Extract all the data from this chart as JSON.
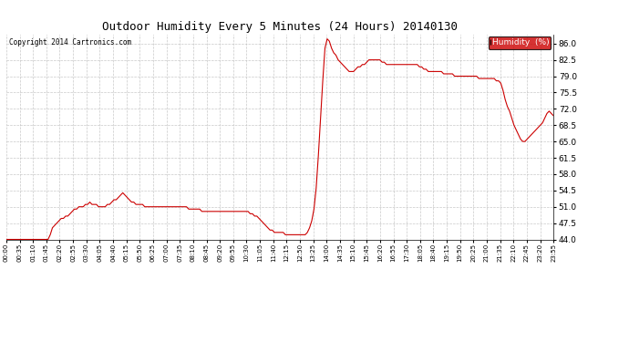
{
  "title": "Outdoor Humidity Every 5 Minutes (24 Hours) 20140130",
  "copyright": "Copyright 2014 Cartronics.com",
  "legend_label": "Humidity  (%)",
  "line_color": "#cc0000",
  "background_color": "#ffffff",
  "grid_color": "#bbbbbb",
  "ylim": [
    44.0,
    88.0
  ],
  "yticks": [
    44.0,
    47.5,
    51.0,
    54.5,
    58.0,
    61.5,
    65.0,
    68.5,
    72.0,
    75.5,
    79.0,
    82.5,
    86.0
  ],
  "humidity_data": [
    44.0,
    44.0,
    44.0,
    44.0,
    44.0,
    44.0,
    44.0,
    44.0,
    44.0,
    44.0,
    44.0,
    44.0,
    44.0,
    44.0,
    44.0,
    44.0,
    44.0,
    44.0,
    44.0,
    44.0,
    45.0,
    46.5,
    47.0,
    47.5,
    48.0,
    48.5,
    48.5,
    49.0,
    49.0,
    49.5,
    50.0,
    50.5,
    50.5,
    51.0,
    51.0,
    51.0,
    51.5,
    51.5,
    52.0,
    51.5,
    51.5,
    51.5,
    51.0,
    51.0,
    51.0,
    51.0,
    51.5,
    51.5,
    52.0,
    52.5,
    52.5,
    53.0,
    53.5,
    54.0,
    53.5,
    53.0,
    52.5,
    52.0,
    52.0,
    51.5,
    51.5,
    51.5,
    51.5,
    51.0,
    51.0,
    51.0,
    51.0,
    51.0,
    51.0,
    51.0,
    51.0,
    51.0,
    51.0,
    51.0,
    51.0,
    51.0,
    51.0,
    51.0,
    51.0,
    51.0,
    51.0,
    51.0,
    51.0,
    50.5,
    50.5,
    50.5,
    50.5,
    50.5,
    50.5,
    50.0,
    50.0,
    50.0,
    50.0,
    50.0,
    50.0,
    50.0,
    50.0,
    50.0,
    50.0,
    50.0,
    50.0,
    50.0,
    50.0,
    50.0,
    50.0,
    50.0,
    50.0,
    50.0,
    50.0,
    50.0,
    50.0,
    49.5,
    49.5,
    49.0,
    49.0,
    48.5,
    48.0,
    47.5,
    47.0,
    46.5,
    46.0,
    46.0,
    45.5,
    45.5,
    45.5,
    45.5,
    45.5,
    45.0,
    45.0,
    45.0,
    45.0,
    45.0,
    45.0,
    45.0,
    45.0,
    45.0,
    45.0,
    45.5,
    46.5,
    48.0,
    50.5,
    55.0,
    62.0,
    70.0,
    78.0,
    85.0,
    87.0,
    86.5,
    85.0,
    84.0,
    83.5,
    82.5,
    82.0,
    81.5,
    81.0,
    80.5,
    80.0,
    80.0,
    80.0,
    80.5,
    81.0,
    81.0,
    81.5,
    81.5,
    82.0,
    82.5,
    82.5,
    82.5,
    82.5,
    82.5,
    82.5,
    82.0,
    82.0,
    81.5,
    81.5,
    81.5,
    81.5,
    81.5,
    81.5,
    81.5,
    81.5,
    81.5,
    81.5,
    81.5,
    81.5,
    81.5,
    81.5,
    81.5,
    81.0,
    81.0,
    80.5,
    80.5,
    80.0,
    80.0,
    80.0,
    80.0,
    80.0,
    80.0,
    80.0,
    79.5,
    79.5,
    79.5,
    79.5,
    79.5,
    79.0,
    79.0,
    79.0,
    79.0,
    79.0,
    79.0,
    79.0,
    79.0,
    79.0,
    79.0,
    79.0,
    78.5,
    78.5,
    78.5,
    78.5,
    78.5,
    78.5,
    78.5,
    78.5,
    78.0,
    78.0,
    77.5,
    76.0,
    74.0,
    72.5,
    71.5,
    70.0,
    68.5,
    67.5,
    66.5,
    65.5,
    65.0,
    65.0,
    65.5,
    66.0,
    66.5,
    67.0,
    67.5,
    68.0,
    68.5,
    69.0,
    70.0,
    71.0,
    71.5,
    71.0,
    70.5
  ],
  "xtick_labels": [
    "00:00",
    "00:35",
    "01:10",
    "01:45",
    "02:20",
    "02:55",
    "03:30",
    "04:05",
    "04:40",
    "05:15",
    "05:50",
    "06:25",
    "07:00",
    "07:35",
    "08:10",
    "08:45",
    "09:20",
    "09:55",
    "10:30",
    "11:05",
    "11:40",
    "12:15",
    "12:50",
    "13:25",
    "14:00",
    "14:35",
    "15:10",
    "15:45",
    "16:20",
    "16:55",
    "17:30",
    "18:05",
    "18:40",
    "19:15",
    "19:50",
    "20:25",
    "21:00",
    "21:35",
    "22:10",
    "22:45",
    "23:20",
    "23:55"
  ]
}
